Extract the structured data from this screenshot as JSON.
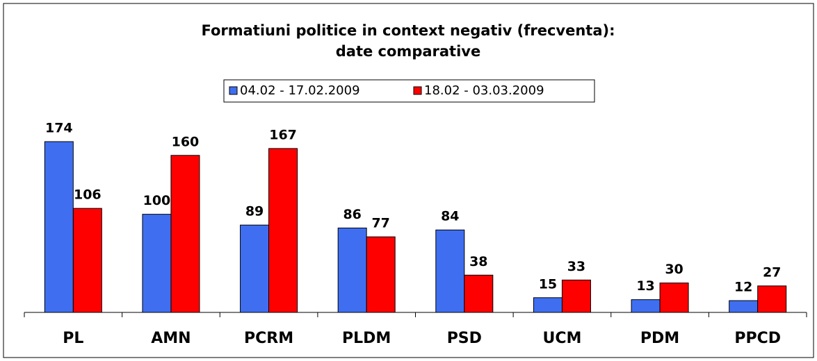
{
  "chart_data": {
    "type": "bar",
    "title": [
      "Formatiuni politice in context negativ (frecventa):",
      "date comparative"
    ],
    "categories": [
      "PL",
      "AMN",
      "PCRM",
      "PLDM",
      "PSD",
      "UCM",
      "PDM",
      "PPCD"
    ],
    "series": [
      {
        "name": "04.02 - 17.02.2009",
        "color": "#3f6ff0",
        "values": [
          174,
          100,
          89,
          86,
          84,
          15,
          13,
          12
        ]
      },
      {
        "name": "18.02 - 03.03.2009",
        "color": "#ff0000",
        "values": [
          106,
          160,
          167,
          77,
          38,
          33,
          30,
          27
        ]
      }
    ],
    "legend": "top"
  }
}
